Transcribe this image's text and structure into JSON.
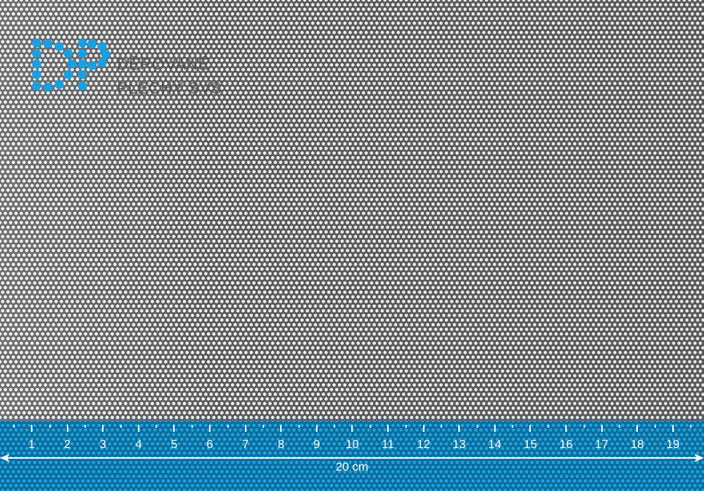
{
  "logo": {
    "line1": "DĚROVANÉ",
    "line2": "PLECHY SVS",
    "color": "#1a9fe0"
  },
  "ruler": {
    "numbers": [
      "1",
      "2",
      "3",
      "4",
      "5",
      "6",
      "7",
      "8",
      "9",
      "10",
      "11",
      "12",
      "13",
      "14",
      "15",
      "16",
      "17",
      "18",
      "19"
    ],
    "length_label": "20 cm",
    "color": "#0b6a9a"
  }
}
